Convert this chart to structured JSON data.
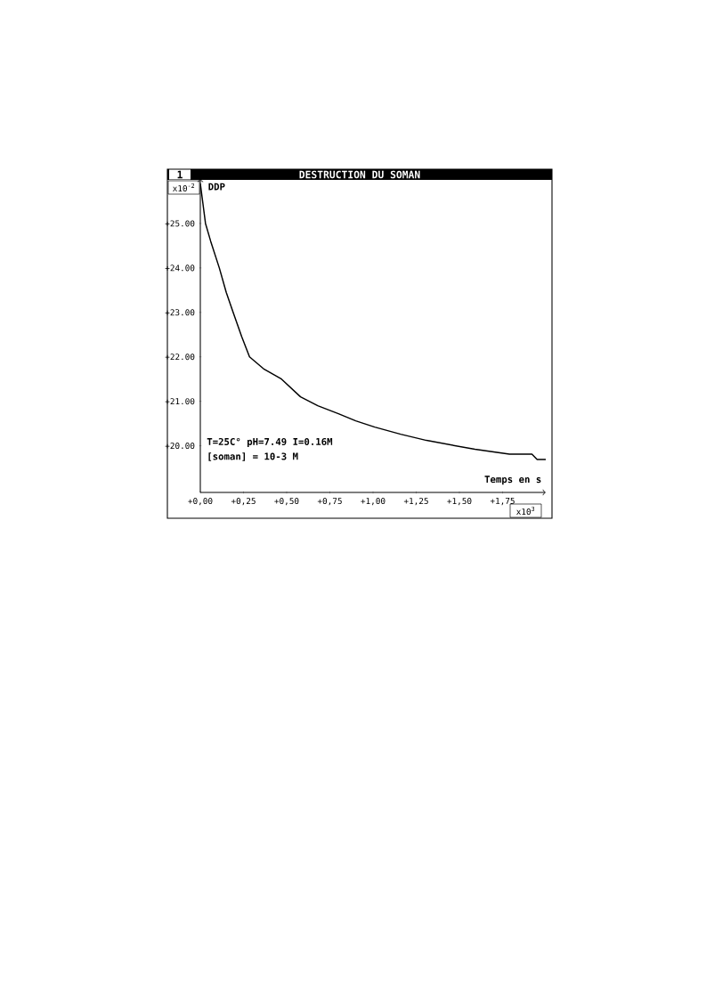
{
  "chart_data": {
    "type": "line",
    "title": "DESTRUCTION DU SOMAN",
    "xlabel": "Temps en s",
    "ylabel": "DDP",
    "x": [
      0,
      0.01,
      0.03,
      0.06,
      0.11,
      0.15,
      0.19,
      0.24,
      0.285,
      0.37,
      0.47,
      0.58,
      0.68,
      0.8,
      0.9,
      1.01,
      1.16,
      1.31,
      1.45,
      1.59,
      1.79,
      1.92,
      1.95,
      2.0
    ],
    "values": [
      25.9,
      25.6,
      25.0,
      24.6,
      24.0,
      23.45,
      23.0,
      22.45,
      22.0,
      21.72,
      21.5,
      21.1,
      20.9,
      20.72,
      20.56,
      20.42,
      20.26,
      20.12,
      20.02,
      19.92,
      19.81,
      19.81,
      19.69,
      19.69
    ],
    "color": "#000000",
    "marker": "none",
    "line_style": "solid",
    "xlim": [
      0,
      2.0
    ],
    "ylim": [
      18.95,
      26.0
    ],
    "xticks": [
      {
        "value": 0,
        "label": "+0,00"
      },
      {
        "value": 0.25,
        "label": "+0,25"
      },
      {
        "value": 0.5,
        "label": "+0,50"
      },
      {
        "value": 0.75,
        "label": "+0,75"
      },
      {
        "value": 1.0,
        "label": "+1,00"
      },
      {
        "value": 1.25,
        "label": "+1,25"
      },
      {
        "value": 1.5,
        "label": "+1,50"
      },
      {
        "value": 1.75,
        "label": "+1,75"
      }
    ],
    "yticks": [
      {
        "value": 20,
        "label": "+20.00"
      },
      {
        "value": 21,
        "label": "+21.00"
      },
      {
        "value": 22,
        "label": "+22.00"
      },
      {
        "value": 23,
        "label": "+23.00"
      },
      {
        "value": 24,
        "label": "+24.00"
      },
      {
        "value": 25,
        "label": "+25.00"
      }
    ],
    "annotations": [
      "1",
      "x10$^{-2}$",
      "x10$^{3}$",
      "T=25C° pH=7.49 I=0.16M",
      "[soman] = 10-3 M"
    ]
  }
}
